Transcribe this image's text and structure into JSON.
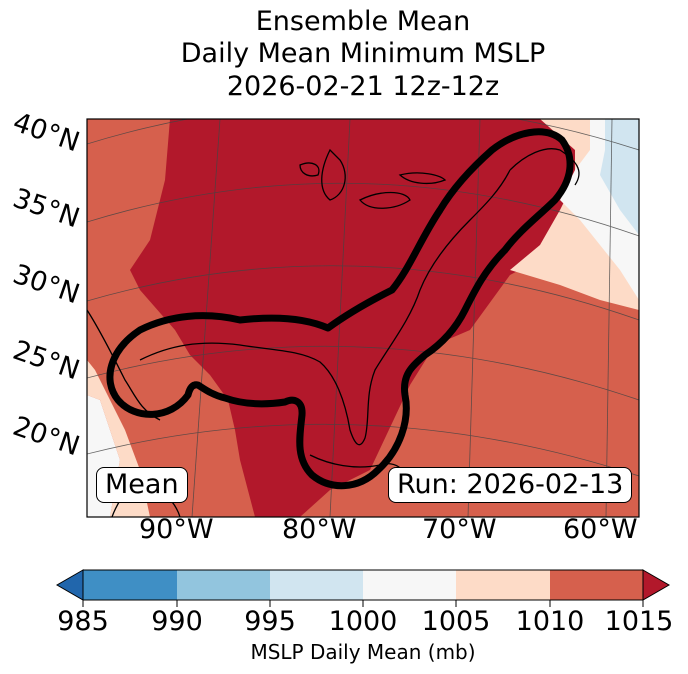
{
  "title": {
    "line1": "Ensemble Mean",
    "line2": "Daily Mean Minimum MSLP",
    "line3": "2026-02-21 12z-12z"
  },
  "map": {
    "lat_ticks": [
      "40°N",
      "35°N",
      "30°N",
      "25°N",
      "20°N"
    ],
    "lon_ticks": [
      "90°W",
      "80°W",
      "70°W",
      "60°W"
    ],
    "mean_badge": "Mean",
    "run_badge": "Run: 2026-02-13",
    "field_colors": {
      "985-990": "#3f8fc5",
      "990-995": "#92c5de",
      "995-1000": "#d1e5f0",
      "1000-1005": "#f7f7f7",
      "1005-1010": "#fddbc7",
      "1010-1015": "#d6604d",
      "above-1015": "#b2182b",
      "below-985": "#2166ac"
    },
    "outline_color": "#000000"
  },
  "colorbar": {
    "ticks": [
      "985",
      "990",
      "995",
      "1000",
      "1005",
      "1010",
      "1015"
    ],
    "label": "MSLP Daily Mean (mb)"
  }
}
